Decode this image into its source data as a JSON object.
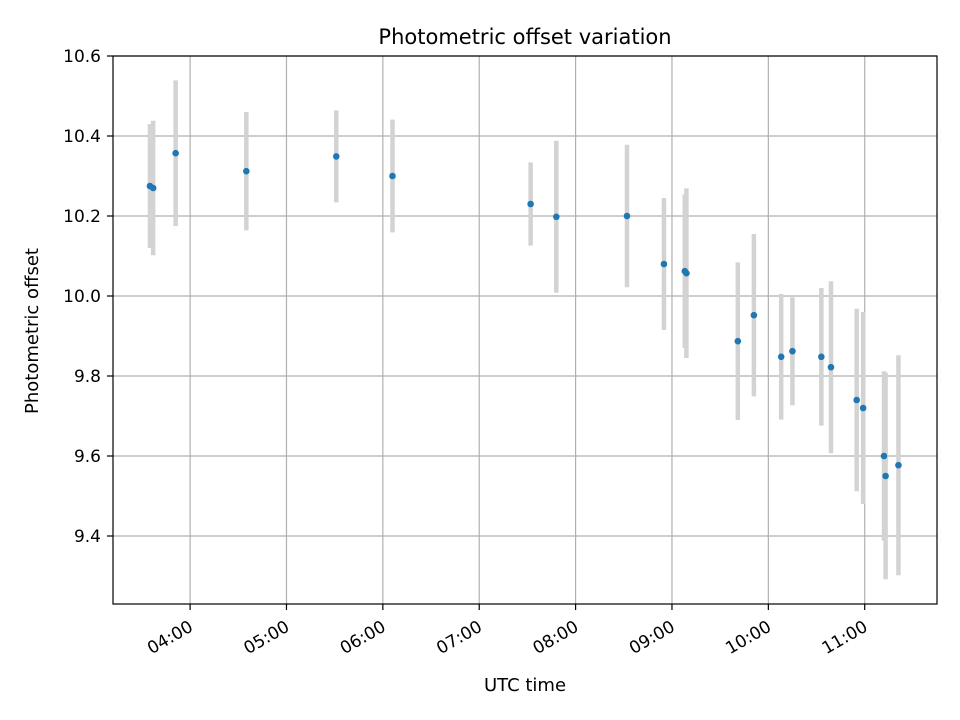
{
  "chart_data": {
    "type": "scatter",
    "title": "Photometric offset variation",
    "xlabel": "UTC time",
    "ylabel": "Photometric offset",
    "grid": true,
    "xlim": [
      "03:12",
      "11:45"
    ],
    "ylim": [
      9.23,
      10.6
    ],
    "x_ticks": [
      "04:00",
      "05:00",
      "06:00",
      "07:00",
      "08:00",
      "09:00",
      "10:00",
      "11:00"
    ],
    "y_ticks": [
      9.4,
      9.6,
      9.8,
      10.0,
      10.2,
      10.4,
      10.6
    ],
    "marker_color": "#1f77b4",
    "errorbar_color": "#d3d3d3",
    "points": [
      {
        "x": "03:35",
        "y": 10.275,
        "err": 0.155
      },
      {
        "x": "03:37",
        "y": 10.27,
        "err": 0.168
      },
      {
        "x": "03:51",
        "y": 10.357,
        "err": 0.182
      },
      {
        "x": "04:35",
        "y": 10.312,
        "err": 0.148
      },
      {
        "x": "05:31",
        "y": 10.349,
        "err": 0.115
      },
      {
        "x": "06:06",
        "y": 10.3,
        "err": 0.141
      },
      {
        "x": "07:32",
        "y": 10.23,
        "err": 0.104
      },
      {
        "x": "07:48",
        "y": 10.198,
        "err": 0.19
      },
      {
        "x": "08:32",
        "y": 10.2,
        "err": 0.178
      },
      {
        "x": "08:55",
        "y": 10.08,
        "err": 0.165
      },
      {
        "x": "09:08",
        "y": 10.062,
        "err": 0.192
      },
      {
        "x": "09:09",
        "y": 10.057,
        "err": 0.212
      },
      {
        "x": "09:41",
        "y": 9.887,
        "err": 0.197
      },
      {
        "x": "09:51",
        "y": 9.952,
        "err": 0.203
      },
      {
        "x": "10:08",
        "y": 9.848,
        "err": 0.157
      },
      {
        "x": "10:15",
        "y": 9.862,
        "err": 0.135
      },
      {
        "x": "10:33",
        "y": 9.848,
        "err": 0.172
      },
      {
        "x": "10:39",
        "y": 9.822,
        "err": 0.215
      },
      {
        "x": "10:55",
        "y": 9.74,
        "err": 0.228
      },
      {
        "x": "10:59",
        "y": 9.72,
        "err": 0.24
      },
      {
        "x": "11:12",
        "y": 9.6,
        "err": 0.212
      },
      {
        "x": "11:13",
        "y": 9.55,
        "err": 0.258
      },
      {
        "x": "11:21",
        "y": 9.577,
        "err": 0.275
      }
    ]
  }
}
